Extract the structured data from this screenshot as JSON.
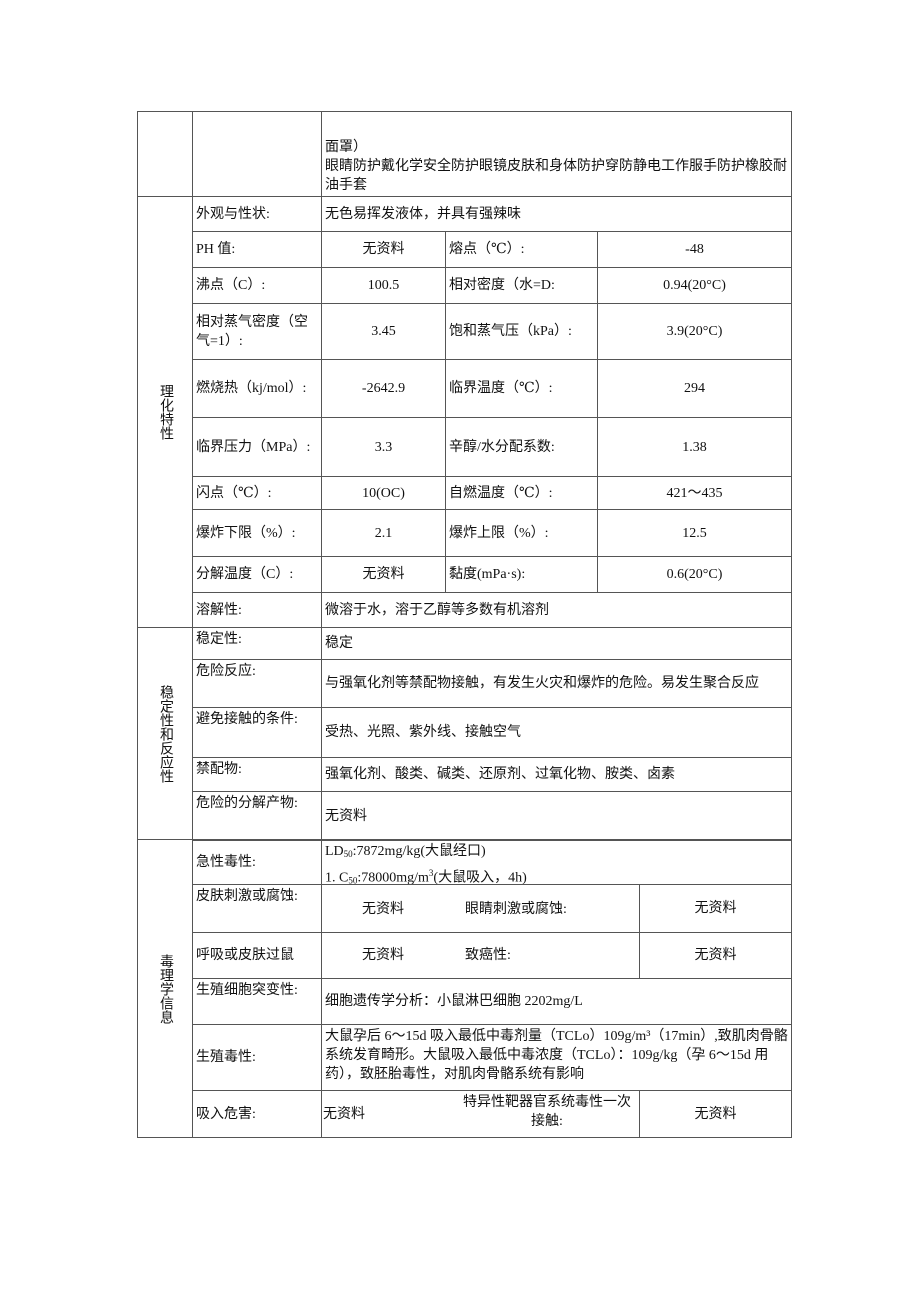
{
  "ppe": {
    "line1": "面罩）",
    "line2": "眼睛防护戴化学安全防护眼镜皮肤和身体防护穿防静电工作服手防护橡胶耐油手套"
  },
  "physchem": {
    "section": "理化特性",
    "appearance": {
      "label": "外观与性状:",
      "value": "无色易挥发液体，并具有强辣味"
    },
    "rows": [
      {
        "l1": "PH 值:",
        "v1": "无资料",
        "l2": "熔点（℃）:",
        "v2": "-48"
      },
      {
        "l1": "沸点（C）:",
        "v1": "100.5",
        "l2": "相对密度（水=D:",
        "v2": "0.94(20°C)"
      },
      {
        "l1": "相对蒸气密度（空气=1）:",
        "v1": "3.45",
        "l2": "饱和蒸气压（kPa）:",
        "v2": "3.9(20°C)"
      },
      {
        "l1": "燃烧热（kj/mol）:",
        "v1": "-2642.9",
        "l2": "临界温度（℃）:",
        "v2": "294"
      },
      {
        "l1": "临界压力（MPa）:",
        "v1": "3.3",
        "l2": "辛醇/水分配系数:",
        "v2": "1.38"
      },
      {
        "l1": "闪点（℃）:",
        "v1": "10(OC)",
        "l2": "自燃温度（℃）:",
        "v2": "421～435"
      },
      {
        "l1": "爆炸下限（%）:",
        "v1": "2.1",
        "l2": "爆炸上限（%）:",
        "v2": "12.5"
      },
      {
        "l1": "分解温度（C）:",
        "v1": "无资料",
        "l2": "黏度(mPa·s):",
        "v2": "0.6(20°C)"
      }
    ],
    "solubility": {
      "label": "溶解性:",
      "value": "微溶于水，溶于乙醇等多数有机溶剂"
    }
  },
  "stability": {
    "section": "稳定性和反应性",
    "rows": [
      {
        "label": "稳定性:",
        "value": "稳定"
      },
      {
        "label": "危险反应:",
        "value": "与强氧化剂等禁配物接触，有发生火灾和爆炸的危险。易发生聚合反应"
      },
      {
        "label": "避免接触的条件:",
        "value": "受热、光照、紫外线、接触空气"
      },
      {
        "label": "禁配物:",
        "value": "强氧化剂、酸类、碱类、还原剂、过氧化物、胺类、卤素"
      },
      {
        "label": "危险的分解产物:",
        "value": "无资料"
      }
    ]
  },
  "toxicology": {
    "section": "毒理学信息",
    "acute": {
      "label": "急性毒性:",
      "ld_a": "LD",
      "ld_sub": "50",
      "ld_b": ":7872mg/kg(大鼠经口)",
      "lc_a": "1. C",
      "lc_sub": "50",
      "lc_b": ":78000mg/m",
      "lc_sup": "3",
      "lc_c": "(大鼠吸入，4h)"
    },
    "skin": {
      "label": "皮肤刺激或腐蚀:",
      "v1": "无资料",
      "l2": "眼睛刺激或腐蚀:",
      "v2": "无资料"
    },
    "resp": {
      "label": "呼吸或皮肤过鼠",
      "v1": "无资料",
      "l2": "致癌性:",
      "v2": "无资料"
    },
    "germ": {
      "label": "生殖细胞突变性:",
      "value": "细胞遗传学分析：小鼠淋巴细胞 2202mg/L"
    },
    "repro": {
      "label": "生殖毒性:",
      "value": "大鼠孕后 6～15d 吸入最低中毒剂量（TCLo）109g/m³（17min）,致肌肉骨骼系统发育畸形。大鼠吸入最低中毒浓度（TCLo）：109g/kg（孕 6～15d 用药），致胚胎毒性，对肌肉骨骼系统有影响"
    },
    "aspiration": {
      "label": "吸入危害:",
      "v1": "无资料",
      "l2": "特异性靶器官系统毒性一次接触:",
      "v2": "无资料"
    }
  }
}
